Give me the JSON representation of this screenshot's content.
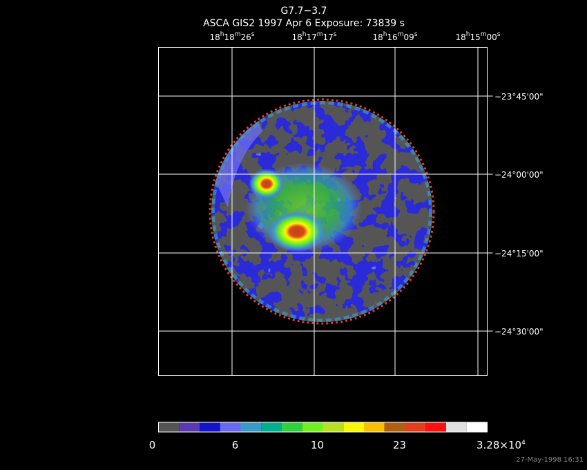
{
  "header": {
    "title": "G7.7−3.7",
    "subtitle": "ASCA GIS2   1997 Apr  6    Exposure: 73839 s"
  },
  "ra_ticks": [
    [
      "18",
      "h",
      "18",
      "m",
      "26",
      "s"
    ],
    [
      "18",
      "h",
      "17",
      "m",
      "17",
      "s"
    ],
    [
      "18",
      "h",
      "16",
      "m",
      "09",
      "s"
    ],
    [
      "18",
      "h",
      "15",
      "m",
      "00",
      "s"
    ]
  ],
  "dec_ticks": [
    "−23°45'00\"",
    "−24°00'00\"",
    "−24°15'00\"",
    "−24°30'00\""
  ],
  "colorbar": {
    "colors": [
      "#555555",
      "#5a3ab0",
      "#1414cc",
      "#6a6af0",
      "#3a9ac8",
      "#00b08c",
      "#30d040",
      "#70f020",
      "#b8e020",
      "#f8f800",
      "#f8c000",
      "#b06010",
      "#e04020",
      "#ff1010",
      "#e0e0e0",
      "#ffffff"
    ],
    "labels": [
      [
        "0"
      ],
      [
        "6"
      ],
      [
        "10"
      ],
      [
        "23"
      ],
      [
        "3.28×10",
        "4"
      ]
    ]
  },
  "timestamp": "27-May-1998 16:31"
}
